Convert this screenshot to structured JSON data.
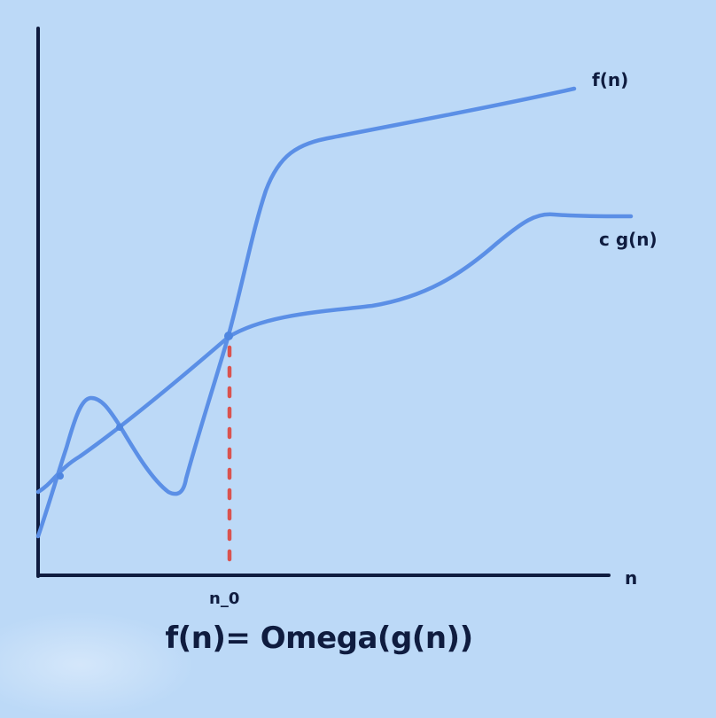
{
  "labels": {
    "f_curve": "f(n)",
    "cg_curve": "c g(n)",
    "x_axis": "n",
    "n0": "n_0"
  },
  "caption": "f(n)= Omega(g(n))",
  "colors": {
    "background": "#bcd9f7",
    "axis": "#0f1c3f",
    "curve": "#5b8fe6",
    "threshold": "#d9534f",
    "text": "#0f1c3f"
  }
}
